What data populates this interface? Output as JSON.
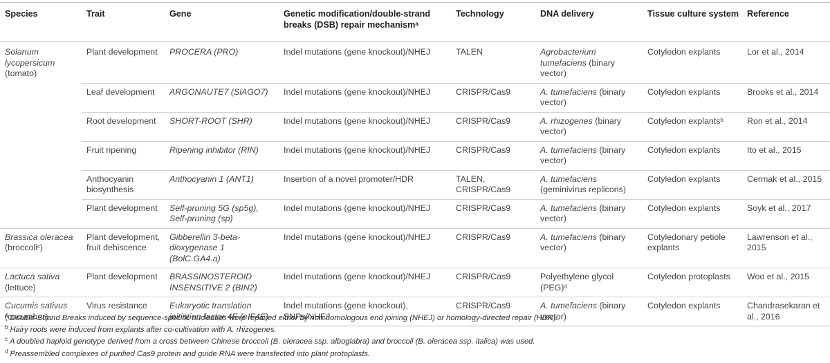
{
  "headers": {
    "species": "Species",
    "trait": "Trait",
    "gene": "Gene",
    "modification": "Genetic modification/double-strand breaks (DSB) repair mechanism",
    "modification_sup": "a",
    "technology": "Technology",
    "delivery": "DNA delivery",
    "tissue": "Tissue culture system",
    "reference": "Reference"
  },
  "rows": [
    {
      "species": "Solanum lycopersicum",
      "species_common": "(tomato)",
      "species_sup": "",
      "trait": "Plant development",
      "gene": "PROCERA (PRO)",
      "modification": "Indel mutations (gene knockout)/NHEJ",
      "technology": "TALEN",
      "delivery_it": "Agrobacterium tumefaciens",
      "delivery_rest": " (binary vector)",
      "delivery_sup": "",
      "tissue": "Cotyledon explants",
      "tissue_sup": "",
      "reference": "Lor et al., 2014"
    },
    {
      "species": "",
      "species_common": "",
      "species_sup": "",
      "trait": "Leaf development",
      "gene": "ARGONAUTE7 (SlAGO7)",
      "modification": "Indel mutations (gene knockout)/NHEJ",
      "technology": "CRISPR/Cas9",
      "delivery_it": "A. tumefaciens",
      "delivery_rest": " (binary vector)",
      "delivery_sup": "",
      "tissue": "Cotyledon explants",
      "tissue_sup": "",
      "reference": "Brooks et al., 2014"
    },
    {
      "species": "",
      "species_common": "",
      "species_sup": "",
      "trait": "Root development",
      "gene": "SHORT-ROOT (SHR)",
      "modification": "Indel mutations (gene knockout)/NHEJ",
      "technology": "CRISPR/Cas9",
      "delivery_it": "A. rhizogenes",
      "delivery_rest": " (binary vector)",
      "delivery_sup": "",
      "tissue": "Cotyledon explants",
      "tissue_sup": "b",
      "reference": "Ron et al., 2014"
    },
    {
      "species": "",
      "species_common": "",
      "species_sup": "",
      "trait": "Fruit ripening",
      "gene": "Ripening inhibitor (RIN)",
      "modification": "Indel mutations (gene knockout)/NHEJ",
      "technology": "CRISPR/Cas9",
      "delivery_it": "A. tumefaciens",
      "delivery_rest": " (binary vector)",
      "delivery_sup": "",
      "tissue": "Cotyledon explants",
      "tissue_sup": "",
      "reference": "Ito et al., 2015"
    },
    {
      "species": "",
      "species_common": "",
      "species_sup": "",
      "trait": "Anthocyanin biosynthesis",
      "gene": "Anthocyanin 1 (ANT1)",
      "modification": "Insertion of a novel promoter/HDR",
      "technology": "TALEN, CRISPR/Cas9",
      "delivery_it": "A. tumefaciens",
      "delivery_rest": " (geminivirus replicons)",
      "delivery_sup": "",
      "tissue": "Cotyledon explants",
      "tissue_sup": "",
      "reference": "Cermak et al., 2015"
    },
    {
      "species": "",
      "species_common": "",
      "species_sup": "",
      "trait": "Plant development",
      "gene": "Self-pruning 5G (sp5g), Self-pruning (sp)",
      "modification": "Indel mutations (gene knockout)/NHEJ",
      "technology": "CRISPR/Cas9",
      "delivery_it": "A. tumefaciens",
      "delivery_rest": " (binary vector)",
      "delivery_sup": "",
      "tissue": "Cotyledon explants",
      "tissue_sup": "",
      "reference": "Soyk et al., 2017"
    },
    {
      "species": "Brassica oleracea",
      "species_common": "(broccoli",
      "species_sup": "c",
      "trait": "Plant development, fruit dehiscence",
      "gene": "Gibberellin 3-beta-dioxygenase 1 (BolC.GA4.a)",
      "modification": "Indel mutations (gene knockout)/NHEJ",
      "technology": "CRISPR/Cas9",
      "delivery_it": "A. tumefaciens",
      "delivery_rest": " (binary vector)",
      "delivery_sup": "",
      "tissue": "Cotyledonary petiole explants",
      "tissue_sup": "",
      "reference": "Lawrenson et al., 2015"
    },
    {
      "species": "Lactuca sativa",
      "species_common": "(lettuce)",
      "species_sup": "",
      "trait": "Plant development",
      "gene": "BRASSINOSTEROID INSENSITIVE 2 (BIN2)",
      "modification": "Indel mutations (gene knockout)/NHEJ",
      "technology": "CRISPR/Cas9",
      "delivery_it": "",
      "delivery_rest": "Polyethylene glycol (PEG)",
      "delivery_sup": "d",
      "tissue": "Cotyledon protoplasts",
      "tissue_sup": "",
      "reference": "Woo et al., 2015"
    },
    {
      "species": "Cucumis sativus",
      "species_common": "(cucumber)",
      "species_sup": "",
      "trait": "Virus resistance",
      "gene": "Eukaryotic translation initiation factor 4E (eIF4E)",
      "modification": "Indel mutations (gene knockout), SNPs/NHEJ",
      "technology": "CRISPR/Cas9",
      "delivery_it": "A. tumefaciens",
      "delivery_rest": " (binary vector)",
      "delivery_sup": "",
      "tissue": "Cotyledon explants",
      "tissue_sup": "",
      "reference": "Chandrasekaran et al., 2016"
    }
  ],
  "footnotes": [
    {
      "mark": "a",
      "text": "Double-Strand Breaks induced by sequence-specific nucleases were repaired either by non-homologous end joining (NHEJ) or homology-directed repair (HDR)."
    },
    {
      "mark": "b",
      "text": "Hairy roots were induced from explants after co-cultivation with A. rhizogenes."
    },
    {
      "mark": "c",
      "text": "A doubled haploid genotype derived from a cross between Chinese broccoli (B. oleracea ssp. alboglabra) and broccoli (B. oleracea ssp. italica) was used."
    },
    {
      "mark": "d",
      "text": "Preassembled complexes of purified Cas9 protein and guide RNA were transfected into plant protoplasts."
    }
  ]
}
